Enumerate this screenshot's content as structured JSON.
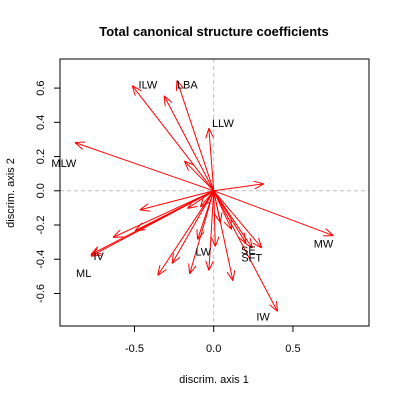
{
  "chart_data": {
    "type": "biplot",
    "title": "Total canonical structure coefficients",
    "xlabel": "discrim. axis 1",
    "ylabel": "discrim. axis 2",
    "xlim": [
      -0.97,
      0.98
    ],
    "ylim": [
      -0.79,
      0.77
    ],
    "xticks": [
      -0.5,
      0.0,
      0.5
    ],
    "xtick_labels": [
      "-0.5",
      "0.0",
      "0.5"
    ],
    "yticks": [
      -0.6,
      -0.4,
      -0.2,
      0.0,
      0.2,
      0.4,
      0.6
    ],
    "ytick_labels": [
      "-0.6",
      "-0.4",
      "-0.2",
      "0.0",
      "0.2",
      "0.4",
      "0.6"
    ],
    "reference_lines": {
      "x": 0,
      "y": 0,
      "color": "#bebebe",
      "style": "dashed"
    },
    "arrow_color": "#ff0000",
    "labeled_vectors": [
      {
        "label": "ILW",
        "x": -0.51,
        "y": 0.61
      },
      {
        "label": "LBA",
        "x": -0.23,
        "y": 0.64
      },
      {
        "label": "LLW",
        "x": -0.03,
        "y": 0.36
      },
      {
        "label": "MLW",
        "x": -0.87,
        "y": 0.28
      },
      {
        "label": "MW",
        "x": 0.75,
        "y": -0.26
      },
      {
        "label": "SE",
        "x": 0.2,
        "y": -0.3
      },
      {
        "label": "SFT",
        "x": 0.24,
        "y": -0.33
      },
      {
        "label": "LW",
        "x": 0.01,
        "y": -0.32
      },
      {
        "label": "IV",
        "x": -0.77,
        "y": -0.37
      },
      {
        "label": "ML",
        "x": -0.77,
        "y": -0.38
      },
      {
        "label": "IW",
        "x": 0.4,
        "y": -0.7
      }
    ],
    "unlabeled_vectors": [
      {
        "x": -0.31,
        "y": 0.55
      },
      {
        "x": -0.18,
        "y": 0.17
      },
      {
        "x": 0.31,
        "y": 0.04
      },
      {
        "x": -0.46,
        "y": -0.11
      },
      {
        "x": -0.16,
        "y": -0.1
      },
      {
        "x": -0.08,
        "y": -0.09
      },
      {
        "x": -0.49,
        "y": -0.23
      },
      {
        "x": -0.63,
        "y": -0.27
      },
      {
        "x": -0.35,
        "y": -0.49
      },
      {
        "x": -0.26,
        "y": -0.42
      },
      {
        "x": -0.15,
        "y": -0.48
      },
      {
        "x": -0.1,
        "y": -0.28
      },
      {
        "x": -0.03,
        "y": -0.46
      },
      {
        "x": 0.12,
        "y": -0.52
      },
      {
        "x": 0.11,
        "y": -0.22
      },
      {
        "x": 0.3,
        "y": -0.33
      },
      {
        "x": 0.04,
        "y": -0.18
      }
    ]
  }
}
